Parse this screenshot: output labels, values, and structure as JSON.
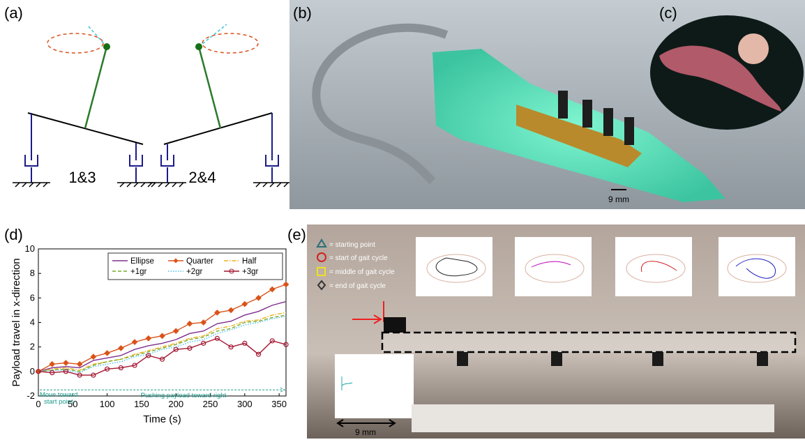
{
  "figure": {
    "a": {
      "label": "(a)",
      "groups": [
        "1&3",
        "2&4"
      ]
    },
    "b": {
      "label": "(b)",
      "scale": "9 mm"
    },
    "c": {
      "label": "(c)"
    },
    "d": {
      "label": "(d)"
    },
    "e": {
      "label": "(e)",
      "legend": [
        "= starting point",
        "= start of gait cycle",
        "= middle of gait cycle",
        "= end of gait cycle"
      ],
      "scale": "9 mm"
    }
  },
  "chart_data": {
    "type": "line",
    "xlabel": "Time (s)",
    "ylabel": "Payload travel in x-direction",
    "annotations": [
      "Move toward start point",
      "Pushing payload toward right"
    ],
    "xlim": [
      0,
      360
    ],
    "ylim": [
      -2,
      10
    ],
    "xticks": [
      0,
      50,
      100,
      150,
      200,
      250,
      300,
      350
    ],
    "yticks": [
      -2,
      0,
      2,
      4,
      6,
      8,
      10
    ],
    "x": [
      0,
      20,
      40,
      60,
      80,
      100,
      120,
      140,
      160,
      180,
      200,
      220,
      240,
      260,
      280,
      300,
      320,
      340,
      360
    ],
    "series": [
      {
        "name": "Ellipse",
        "color": "#7e2f8e",
        "linestyle": "solid",
        "marker": "none",
        "values": [
          0,
          0.3,
          0.4,
          0.3,
          0.9,
          1.1,
          1.3,
          1.8,
          2.1,
          2.3,
          2.6,
          3.1,
          3.3,
          3.9,
          4.1,
          4.6,
          4.9,
          5.4,
          5.7
        ]
      },
      {
        "name": "Quarter",
        "color": "#d95319",
        "linestyle": "solid",
        "marker": "diamond",
        "values": [
          0,
          0.6,
          0.7,
          0.6,
          1.2,
          1.5,
          1.9,
          2.4,
          2.7,
          2.9,
          3.3,
          3.9,
          4.0,
          4.8,
          5.0,
          5.5,
          6.0,
          6.7,
          7.1
        ]
      },
      {
        "name": "Half",
        "color": "#edb120",
        "linestyle": "dash-dot",
        "marker": "none",
        "values": [
          0,
          0.2,
          0.3,
          0.1,
          0.6,
          0.8,
          1.0,
          1.4,
          1.7,
          2.0,
          2.3,
          2.7,
          2.9,
          3.5,
          3.7,
          4.1,
          4.2,
          4.6,
          4.8
        ]
      },
      {
        "name": "+1gr",
        "color": "#77ac30",
        "linestyle": "dashed",
        "marker": "none",
        "values": [
          0,
          0.1,
          0.2,
          0,
          0.5,
          0.8,
          1.0,
          1.3,
          1.6,
          1.9,
          2.2,
          2.6,
          2.8,
          3.3,
          3.5,
          4.0,
          4.1,
          4.4,
          4.6
        ]
      },
      {
        "name": "+2gr",
        "color": "#4dbeee",
        "linestyle": "dotted",
        "marker": "none",
        "values": [
          0,
          0.1,
          0.1,
          -0.1,
          0.4,
          0.6,
          0.8,
          1.2,
          1.4,
          1.8,
          2.0,
          2.4,
          2.6,
          3.1,
          3.4,
          3.8,
          4.0,
          4.3,
          4.5
        ]
      },
      {
        "name": "+3gr",
        "color": "#a2142f",
        "linestyle": "solid",
        "marker": "circle",
        "values": [
          0,
          -0.1,
          0,
          -0.3,
          -0.3,
          0.2,
          0.3,
          0.5,
          1.3,
          1.0,
          1.8,
          1.9,
          2.3,
          2.7,
          2.0,
          2.3,
          1.4,
          2.5,
          2.2
        ]
      }
    ]
  }
}
